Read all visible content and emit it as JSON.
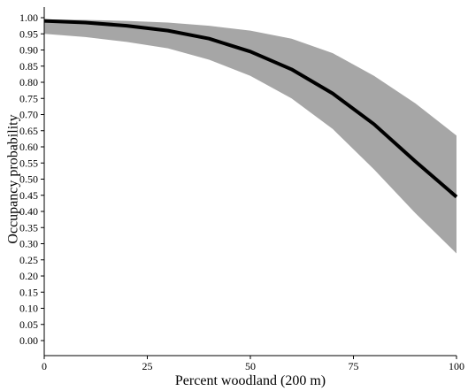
{
  "chart_data": {
    "type": "line",
    "xlabel": "Percent woodland (200 m)",
    "ylabel": "Occupancy probability",
    "xlim": [
      0,
      100
    ],
    "ylim": [
      0,
      1.0
    ],
    "xticks": [
      "0",
      "25",
      "50",
      "75",
      "100"
    ],
    "yticks": [
      "0.00",
      "0.05",
      "0.10",
      "0.15",
      "0.20",
      "0.25",
      "0.30",
      "0.35",
      "0.40",
      "0.45",
      "0.50",
      "0.55",
      "0.60",
      "0.65",
      "0.70",
      "0.75",
      "0.80",
      "0.85",
      "0.90",
      "0.95",
      "1.00"
    ],
    "grid": false,
    "series": [
      {
        "x": [
          0,
          10,
          20,
          30,
          40,
          50,
          60,
          70,
          80,
          90,
          100
        ],
        "y": [
          0.99,
          0.985,
          0.975,
          0.96,
          0.935,
          0.895,
          0.84,
          0.765,
          0.67,
          0.555,
          0.445
        ],
        "lower": [
          0.95,
          0.94,
          0.925,
          0.905,
          0.87,
          0.82,
          0.75,
          0.655,
          0.53,
          0.395,
          0.27
        ],
        "upper": [
          0.995,
          0.993,
          0.99,
          0.985,
          0.975,
          0.96,
          0.935,
          0.89,
          0.82,
          0.735,
          0.635
        ],
        "line_color": "#000000",
        "band_color": "#a6a6a6"
      }
    ]
  }
}
